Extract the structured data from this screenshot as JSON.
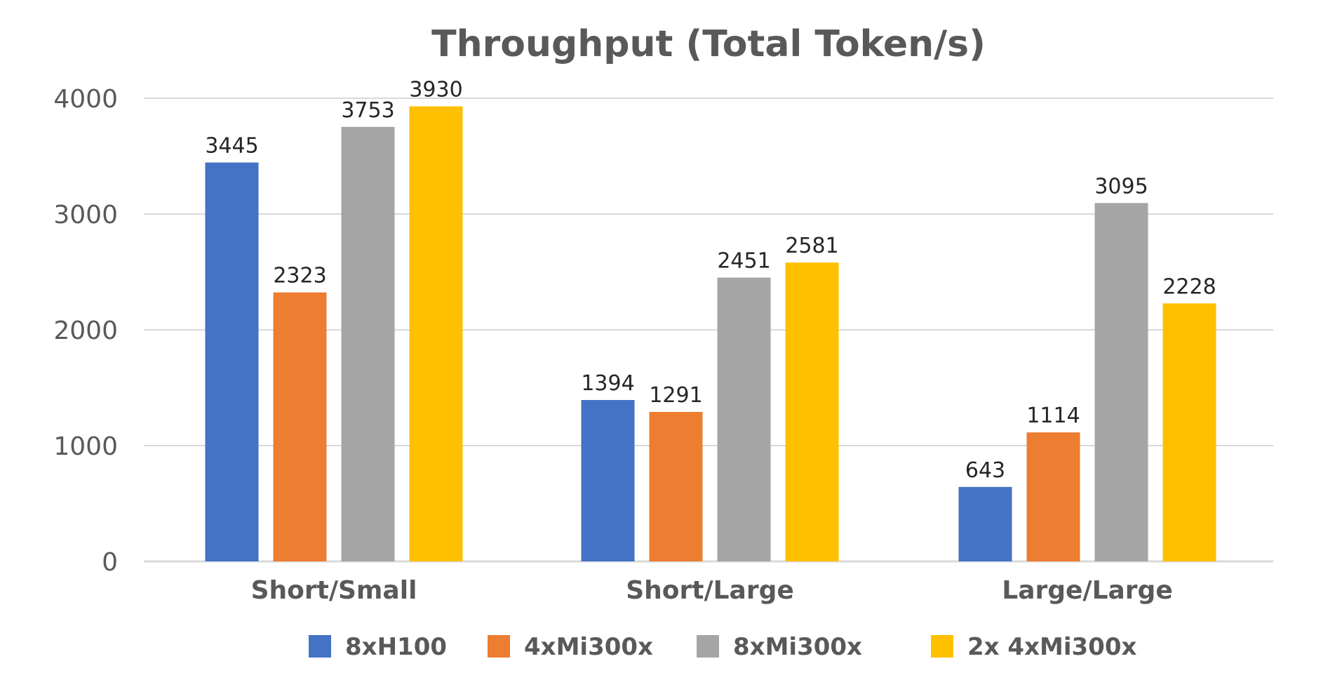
{
  "chart_data": {
    "type": "bar",
    "title": "Throughput (Total Token/s)",
    "xlabel": "",
    "ylabel": "",
    "ylim": [
      0,
      4000
    ],
    "yticks": [
      "0",
      "1000",
      "2000",
      "3000",
      "4000"
    ],
    "grid": true,
    "legend_position": "bottom",
    "categories": [
      "Short/Small",
      "Short/Large",
      "Large/Large"
    ],
    "series": [
      {
        "name": "8xH100",
        "color": "#4472c4",
        "values": [
          3445,
          1394,
          643
        ]
      },
      {
        "name": "4xMi300x",
        "color": "#ed7d31",
        "values": [
          2323,
          1291,
          1114
        ]
      },
      {
        "name": "8xMi300x",
        "color": "#a5a5a5",
        "values": [
          3753,
          2451,
          3095
        ]
      },
      {
        "name": "2x 4xMi300x",
        "color": "#ffc000",
        "values": [
          3930,
          2581,
          2228
        ]
      }
    ]
  }
}
